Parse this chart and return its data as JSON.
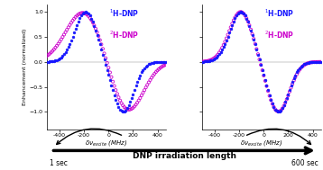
{
  "ylabel": "Enhancement (normalized)",
  "color_1h": "#1515ff",
  "color_2h": "#cc00cc",
  "legend_1h": "$^{1}$H-DNP",
  "legend_2h": "$^{2}$H-DNP",
  "arrow_label": "DNP irradiation length",
  "label_left": "1 sec",
  "label_right": "600 sec",
  "plot1": {
    "y1h_peak1": -185,
    "y1h_peak2": 120,
    "w1h1": 90,
    "w1h2": 85,
    "y2h_peak1": -200,
    "y2h_peak2": 155,
    "w2h1": 145,
    "w2h2": 130
  },
  "plot2": {
    "y1h_peak1": -185,
    "y1h_peak2": 120,
    "w1h1": 90,
    "w1h2": 85,
    "y2h_peak1": -185,
    "y2h_peak2": 120,
    "w2h1": 95,
    "w2h2": 90
  },
  "xticks": [
    -400,
    -200,
    0,
    200,
    400
  ],
  "yticks": [
    -1.0,
    -0.5,
    0.0,
    0.5,
    1.0
  ],
  "xlim": [
    -500,
    470
  ],
  "ylim": [
    -1.35,
    1.15
  ]
}
